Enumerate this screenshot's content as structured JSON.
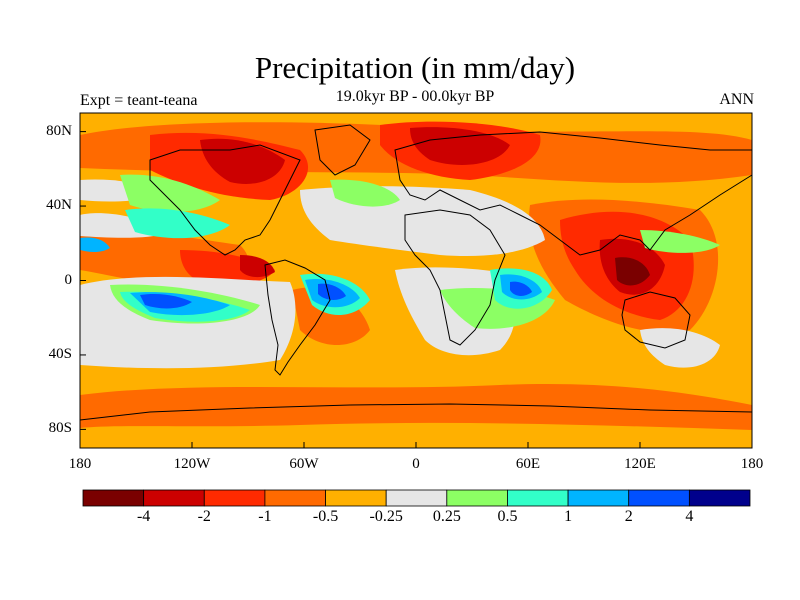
{
  "title": "Precipitation (in mm/day)",
  "subtitle": "19.0kyr BP - 00.0kyr BP",
  "left_label": "Expt = teant-teana",
  "right_label": "ANN",
  "lat_ticks": [
    {
      "label": "80N",
      "lat": 80
    },
    {
      "label": "40N",
      "lat": 40
    },
    {
      "label": "0",
      "lat": 0
    },
    {
      "label": "40S",
      "lat": -40
    },
    {
      "label": "80S",
      "lat": -80
    }
  ],
  "lon_ticks": [
    {
      "label": "180",
      "lon": -180
    },
    {
      "label": "120W",
      "lon": -120
    },
    {
      "label": "60W",
      "lon": -60
    },
    {
      "label": "0",
      "lon": 0
    },
    {
      "label": "60E",
      "lon": 60
    },
    {
      "label": "120E",
      "lon": 120
    },
    {
      "label": "180",
      "lon": 180
    }
  ],
  "colorbar": {
    "colors": [
      "#7a0000",
      "#cc0000",
      "#ff2a00",
      "#ff6a00",
      "#ffb000",
      "#e6e6e6",
      "#8cff64",
      "#32ffc8",
      "#00b4ff",
      "#0050ff",
      "#00008c"
    ],
    "labels": [
      "-4",
      "-2",
      "-1",
      "-0.5",
      "-0.25",
      "0.25",
      "0.5",
      "1",
      "2",
      "4"
    ]
  },
  "palette": {
    "dark_red": "#7a0000",
    "red": "#cc0000",
    "red_orange": "#ff2a00",
    "orange": "#ff6a00",
    "light_orange": "#ffb000",
    "neutral": "#e6e6e6",
    "light_green": "#8cff64",
    "aqua": "#32ffc8",
    "sky_blue": "#00b4ff",
    "blue": "#0050ff",
    "navy": "#00008c"
  }
}
